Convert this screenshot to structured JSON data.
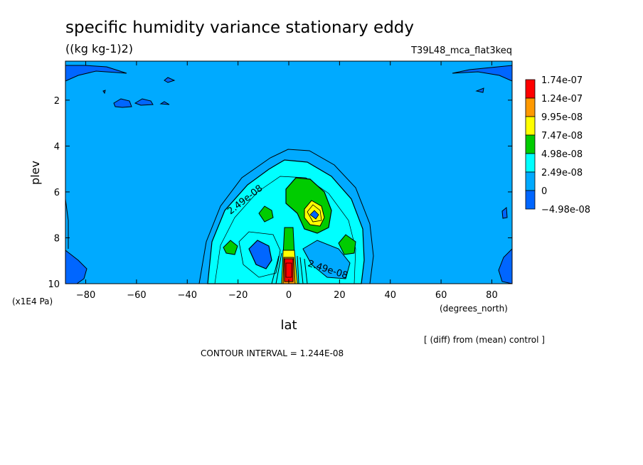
{
  "chart_data": {
    "type": "heatmap",
    "title": "specific humidity variance stationary eddy",
    "units": "((kg kg-1)2)",
    "experiment": "T39L48_mca_flat3keq",
    "xlabel": "lat",
    "xunits": "(degrees_north)",
    "ylabel": "plev",
    "yunits": "(x1E4 Pa)",
    "xlim": [
      -88,
      88
    ],
    "ylim": [
      10,
      0.3
    ],
    "x_ticks": [
      -80,
      -60,
      -40,
      -20,
      0,
      20,
      40,
      60,
      80
    ],
    "x_tick_labels": [
      "−80",
      "−60",
      "−40",
      "−20",
      "0",
      "20",
      "40",
      "60",
      "80"
    ],
    "y_ticks": [
      2,
      4,
      6,
      8,
      10
    ],
    "y_tick_labels": [
      "2",
      "4",
      "6",
      "8",
      "10"
    ],
    "legend_values": [
      "1.74e-07",
      "1.24e-07",
      "9.95e-08",
      "7.47e-08",
      "4.98e-08",
      "2.49e-08",
      "0",
      "−4.98e-08"
    ],
    "legend_colors": [
      "#ff0000",
      "#ff9900",
      "#ffff00",
      "#00cc00",
      "#00ffff",
      "#00aaff",
      "#0066ff"
    ],
    "contour_labels": [
      "2.49e-08",
      "2.49e-08"
    ],
    "contour_interval": "CONTOUR INTERVAL = 1.244E-08",
    "note": "[ (diff) from (mean) control ]",
    "regions": [
      {
        "level": "0 to 2.49e-08",
        "color": "#00aaff",
        "lon_range": [
          -88,
          88
        ],
        "plev_range": [
          0.3,
          10
        ]
      },
      {
        "level": "2.49e-08 to 4.98e-08",
        "color": "#00ffff",
        "lat_range": [
          -30,
          30
        ],
        "plev_range": [
          4.4,
          10
        ]
      },
      {
        "level": "4.98e-08 to 7.47e-08",
        "color": "#00cc00",
        "lat_range": [
          5,
          16
        ],
        "plev_range": [
          5.8,
          7.5
        ]
      },
      {
        "level": "7.47e-08 to 9.95e-08",
        "color": "#ffff00",
        "lat_range": [
          7,
          14
        ],
        "plev_range": [
          6.6,
          7.5
        ]
      },
      {
        "level": "1.74e-07",
        "color": "#ff0000",
        "lat_range": [
          -2,
          2
        ],
        "plev_range": [
          8.9,
          10
        ]
      },
      {
        "level": "-4.98e-08 to 0",
        "color": "#0066ff",
        "lat_range": [
          -14,
          -8
        ],
        "plev_range": [
          8.2,
          9.2
        ]
      }
    ]
  }
}
